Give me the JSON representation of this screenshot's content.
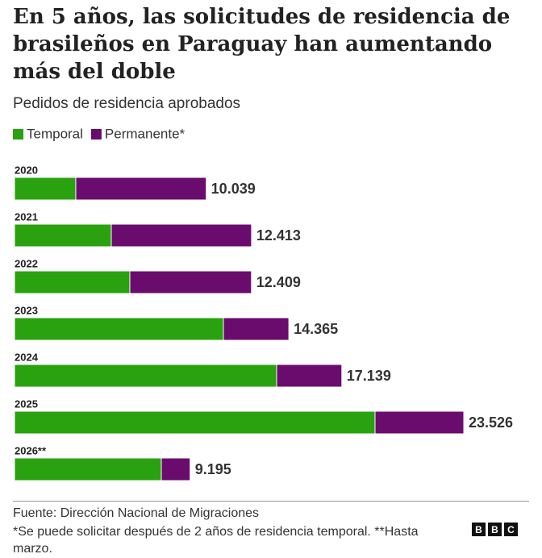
{
  "chart_data": {
    "type": "stacked-bar-horizontal",
    "title": "En 5 años, las solicitudes de residencia de brasileños en Paraguay han aumentando más del doble",
    "subtitle": "Pedidos de residencia aprobados",
    "categories": [
      "2020",
      "2021",
      "2022",
      "2023",
      "2024",
      "2025",
      "2026**"
    ],
    "series": [
      {
        "name": "Temporal",
        "color": "#2aa10f",
        "values": [
          3209,
          5068,
          6039,
          10939,
          13727,
          18880,
          7687
        ]
      },
      {
        "name": "Permanente*",
        "color": "#6a0b6e",
        "values": [
          6830,
          7345,
          6370,
          3426,
          3412,
          4646,
          1508
        ]
      }
    ],
    "totals": {
      "values": [
        10039,
        12413,
        12409,
        14365,
        17139,
        23526,
        9195
      ],
      "value_labels": [
        "10.039",
        "12.413",
        "12.409",
        "14.365",
        "17.139",
        "23.526",
        "9.195"
      ]
    },
    "source": "Fuente: Dirección Nacional de Migraciones",
    "note": "*Se puede solicitar después de 2 años de residencia temporal. **Hasta marzo.",
    "logo": [
      "B",
      "B",
      "C"
    ]
  }
}
